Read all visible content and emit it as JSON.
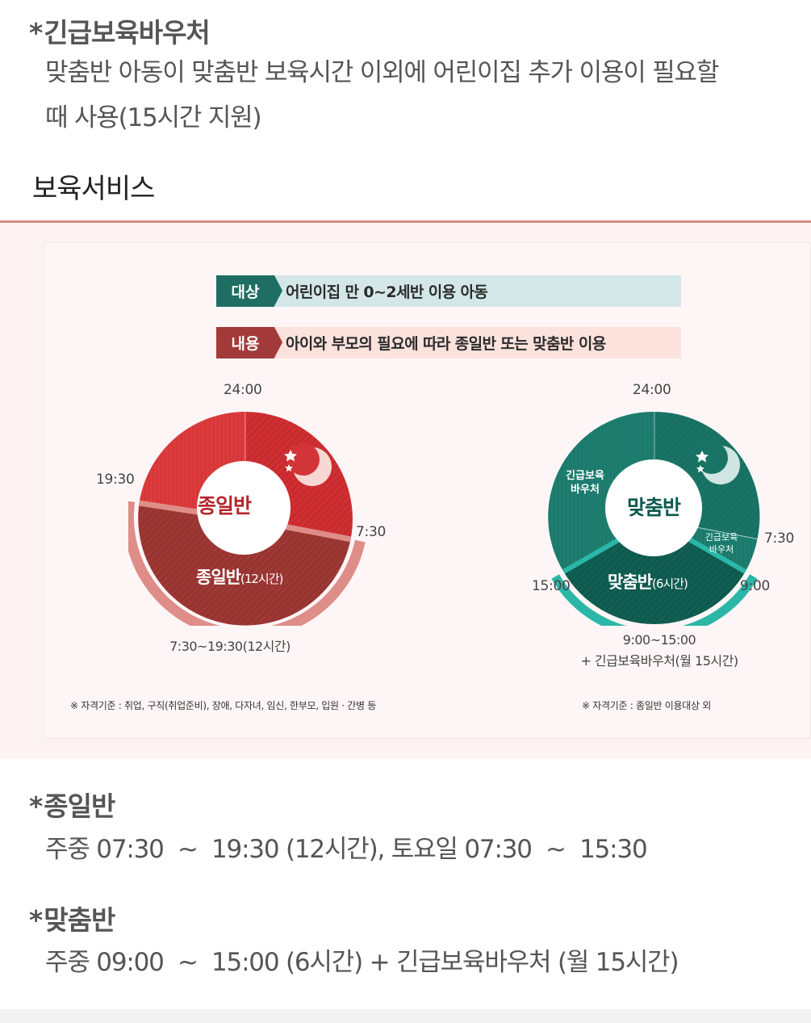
{
  "notes_top": {
    "title_star": "*",
    "title": "긴급보육바우처",
    "line1": "맞춤반 아동이 맞춤반 보육시간 이외에 어린이집 추가 이용이 필요할",
    "line2": "때 사용(15시간 지원)"
  },
  "section": {
    "title": "보육서비스"
  },
  "infographic": {
    "target_tag": "대상",
    "target_text": "어린이집 만 0~2세반 이용 아동",
    "content_tag": "내용",
    "content_text": "아이와 부모의 필요에 따라 종일반 또는 맞춤반 이용",
    "full_day": {
      "top_time": "24:00",
      "left_time": "19:30",
      "right_time": "7:30",
      "center_label": "종일반",
      "segment_label": "종일반",
      "segment_hours": "(12시간)",
      "caption": "7:30~19:30(12시간)",
      "footnote": "※ 자격기준 : 취업, 구직(취업준비), 장애, 다자녀, 임신, 한부모, 입원 · 간병 등"
    },
    "custom": {
      "top_time": "24:00",
      "right_time": "7:30",
      "left_time": "15:00",
      "right_bottom_time": "9:00",
      "center_label": "맞춤반",
      "voucher_left_1": "긴급보육",
      "voucher_left_2": "바우처",
      "voucher_right_1": "긴급보육",
      "voucher_right_2": "바우처",
      "segment_label": "맞춤반",
      "segment_hours": "(6시간)",
      "caption_line1": "9:00~15:00",
      "caption_line2": "+ 긴급보육바우처(월 15시간)",
      "footnote": "※ 자격기준 : 종일반 이용대상 외"
    },
    "colors": {
      "red": "#cc2a2e",
      "red_dark": "#9b3532",
      "red_ring": "#de8d88",
      "teal": "#187465",
      "teal_dark": "#0f5a4f",
      "teal_ring": "#2bb7a8",
      "target_bg": "#d4e7e8",
      "content_bg": "#fbe2dc"
    }
  },
  "notes_bottom": {
    "full_title_star": "*",
    "full_title": "종일반",
    "full_text": "주중 07:30  ~  19:30 (12시간), 토요일 07:30  ~  15:30",
    "custom_title_star": "*",
    "custom_title": "맞춤반",
    "custom_text": "주중 09:00  ~  15:00 (6시간) + 긴급보육바우처 (월 15시간)"
  }
}
